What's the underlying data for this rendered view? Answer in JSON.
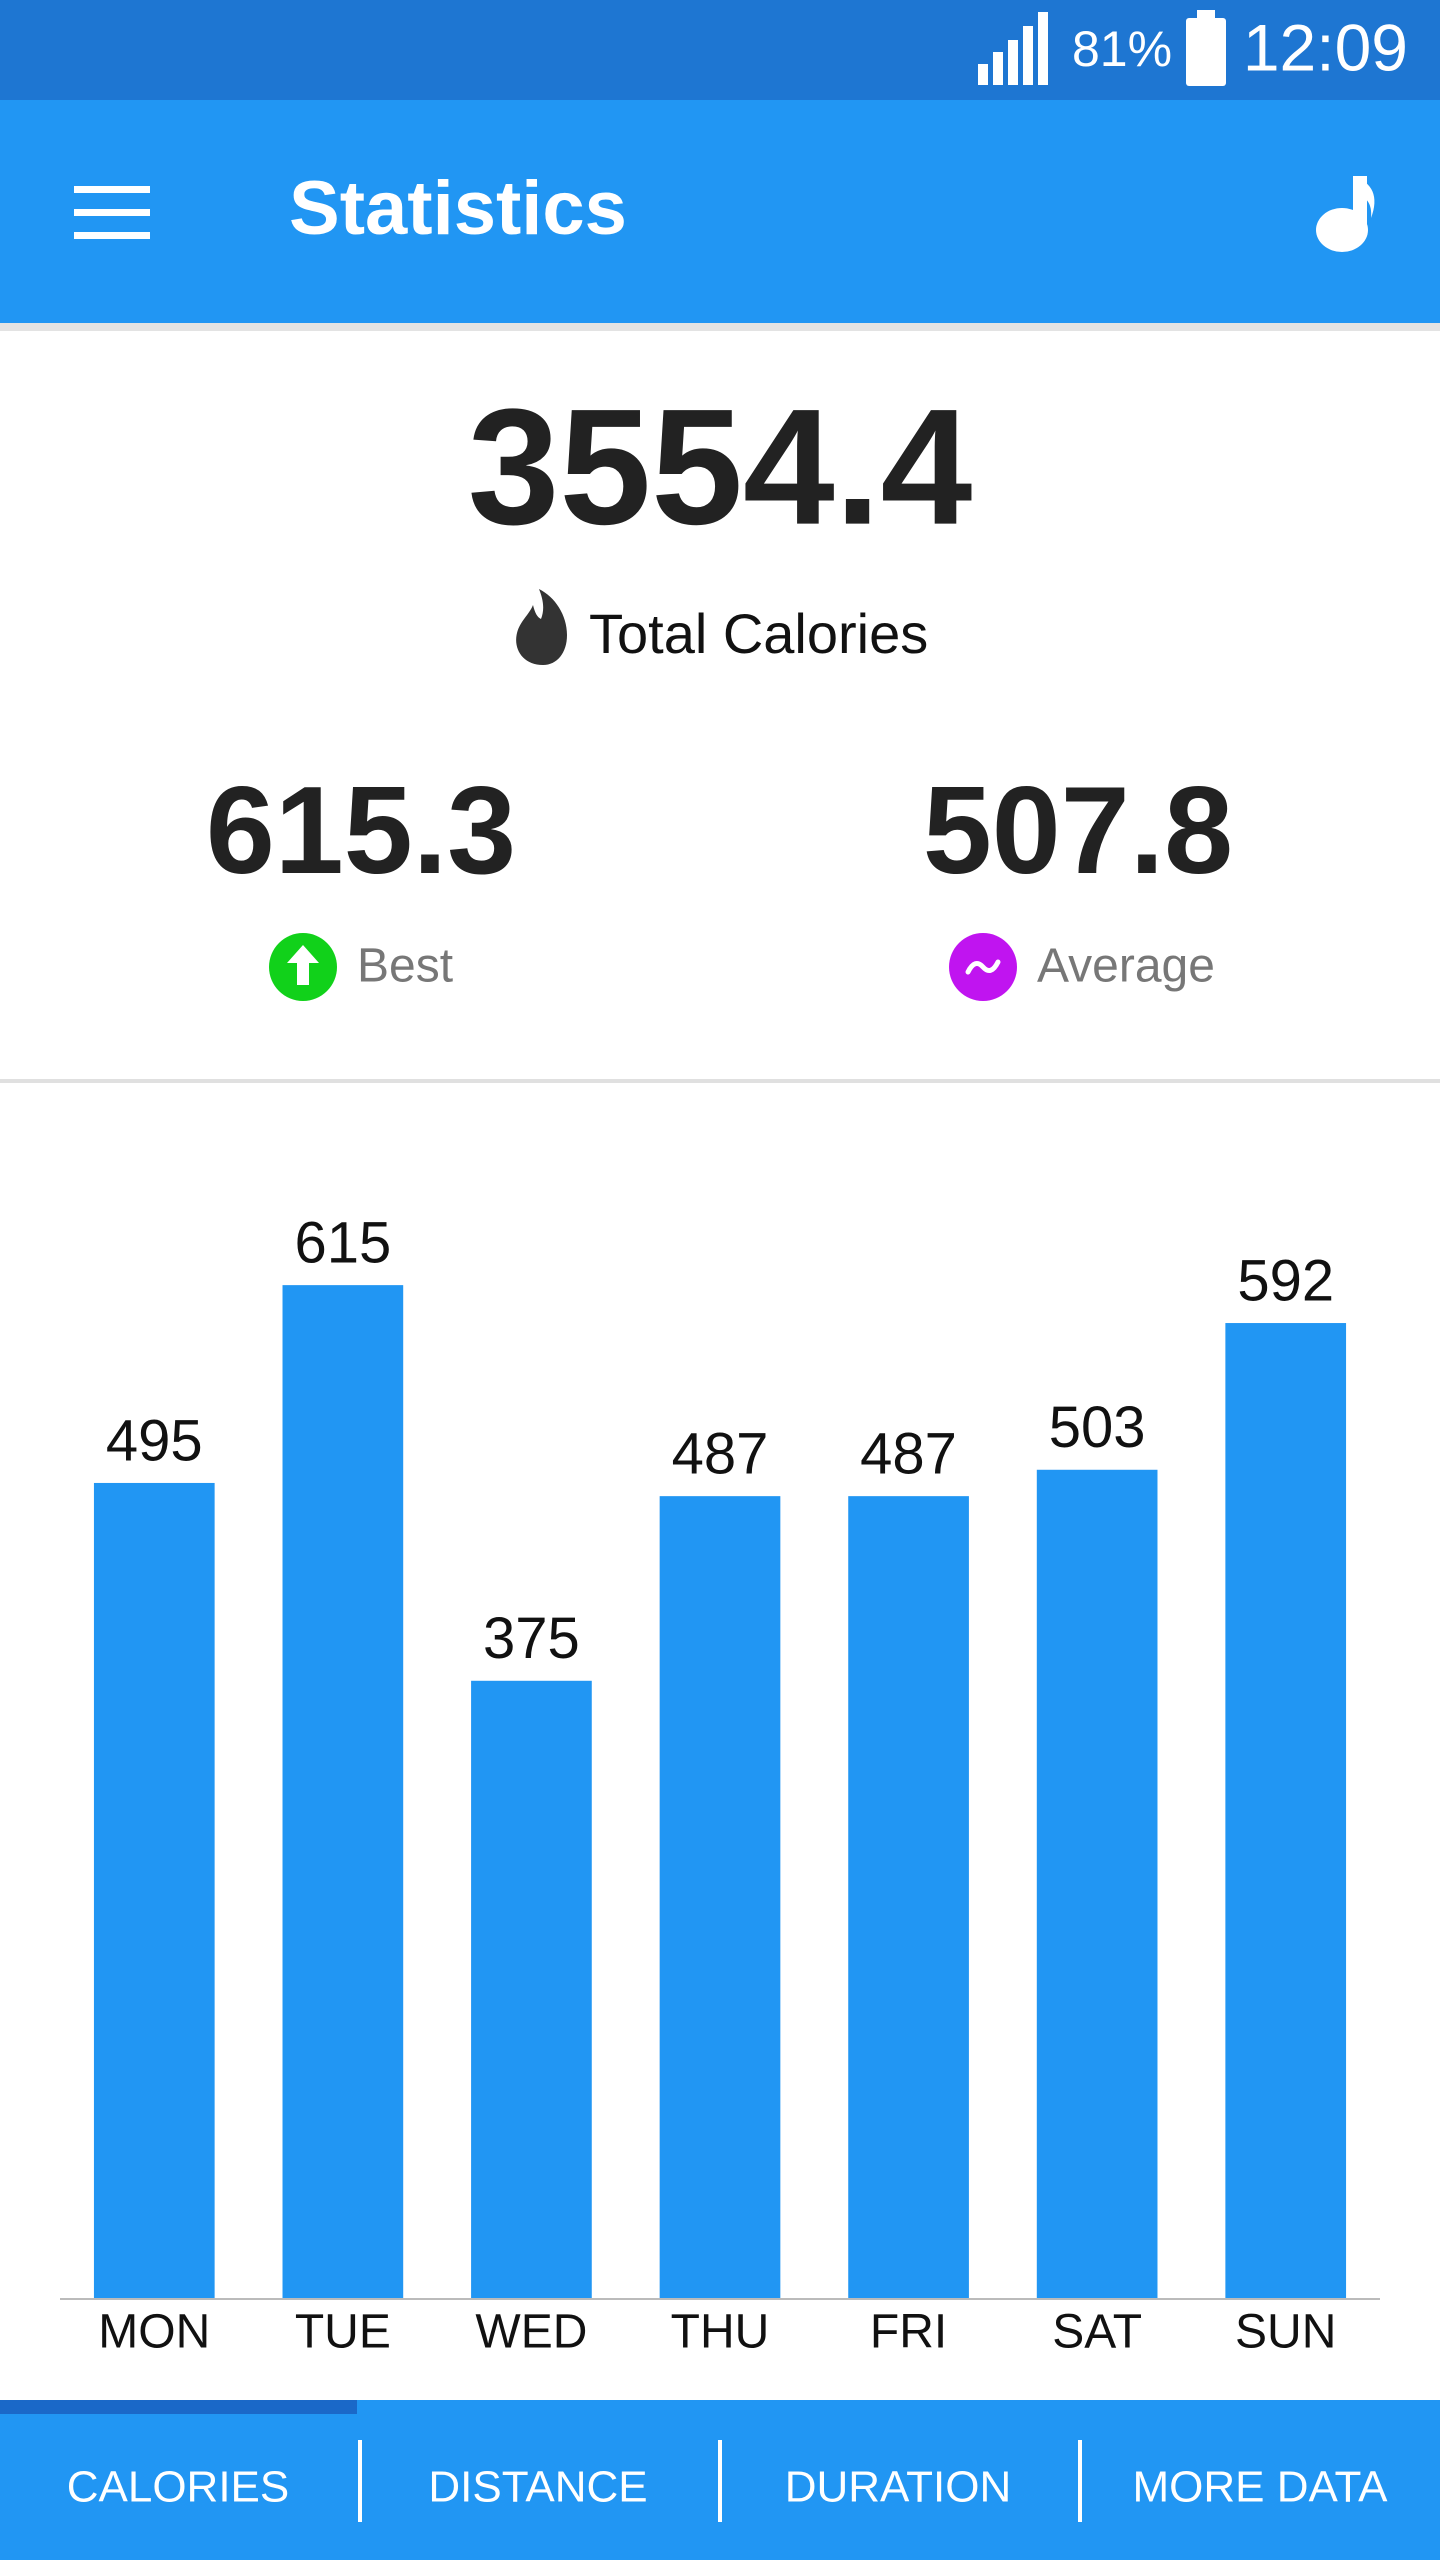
{
  "status_bar": {
    "battery": "81%",
    "time": "12:09"
  },
  "app_bar": {
    "title": "Statistics"
  },
  "summary": {
    "total": {
      "value": 3554.4,
      "label": "Total Calories"
    },
    "best": {
      "value": 615.3,
      "label": "Best"
    },
    "average": {
      "value": 507.8,
      "label": "Average"
    }
  },
  "chart_data": {
    "type": "bar",
    "categories": [
      "MON",
      "TUE",
      "WED",
      "THU",
      "FRI",
      "SAT",
      "SUN"
    ],
    "values": [
      495,
      615,
      375,
      487,
      487,
      503,
      592
    ],
    "color": "#2196f3",
    "ylim": [
      0,
      700
    ]
  },
  "tabs": [
    "CALORIES",
    "DISTANCE",
    "DURATION",
    "MORE DATA"
  ]
}
